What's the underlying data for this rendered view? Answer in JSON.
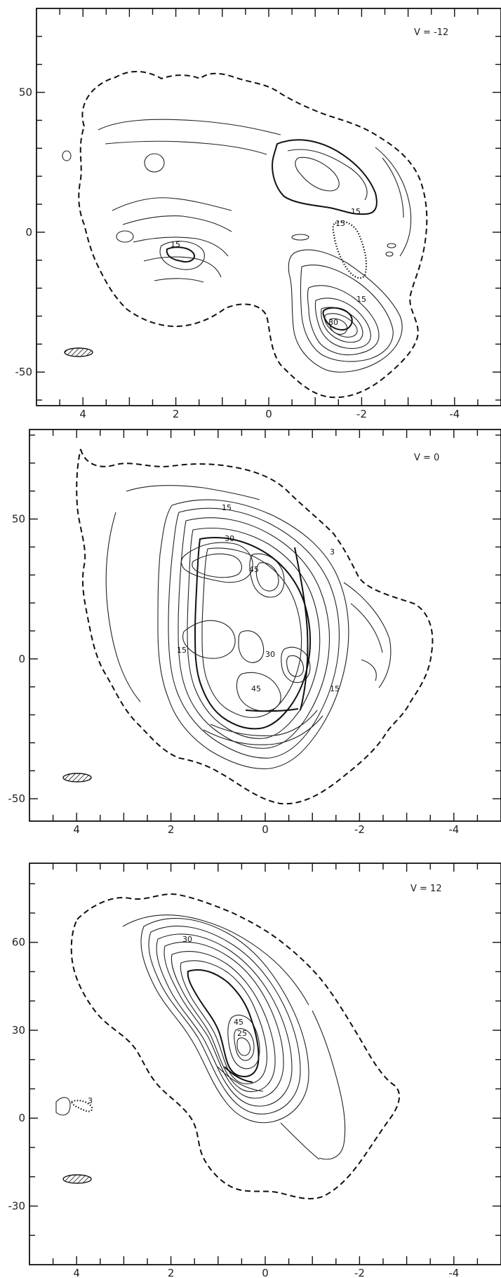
{
  "chart_data": [
    {
      "type": "contour",
      "panel_label": "V = -12",
      "x_ticks": [
        "4",
        "2",
        "0",
        "-2",
        "-4"
      ],
      "y_ticks": [
        "50",
        "0",
        "-50"
      ],
      "xlim": [
        5.0,
        -5.0
      ],
      "ylim": [
        -62,
        80
      ],
      "contour_labels": [
        "15",
        "15",
        "15",
        "15",
        "30"
      ],
      "has_beam": true
    },
    {
      "type": "contour",
      "panel_label": "V = 0",
      "x_ticks": [
        "4",
        "2",
        "0",
        "-2",
        "-4"
      ],
      "y_ticks": [
        "50",
        "0",
        "-50"
      ],
      "xlim": [
        5.0,
        -5.0
      ],
      "ylim": [
        -58,
        82
      ],
      "contour_labels": [
        "15",
        "30",
        "45",
        "3",
        "15",
        "30",
        "45",
        "15"
      ],
      "has_beam": true
    },
    {
      "type": "contour",
      "panel_label": "V = 12",
      "x_ticks": [
        "4",
        "2",
        "0",
        "-2",
        "-4"
      ],
      "y_ticks": [
        "60",
        "30",
        "0",
        "-30"
      ],
      "xlim": [
        5.0,
        -5.0
      ],
      "ylim": [
        -50,
        87
      ],
      "contour_labels": [
        "30",
        "45",
        "25",
        "3"
      ],
      "has_beam": true
    }
  ]
}
